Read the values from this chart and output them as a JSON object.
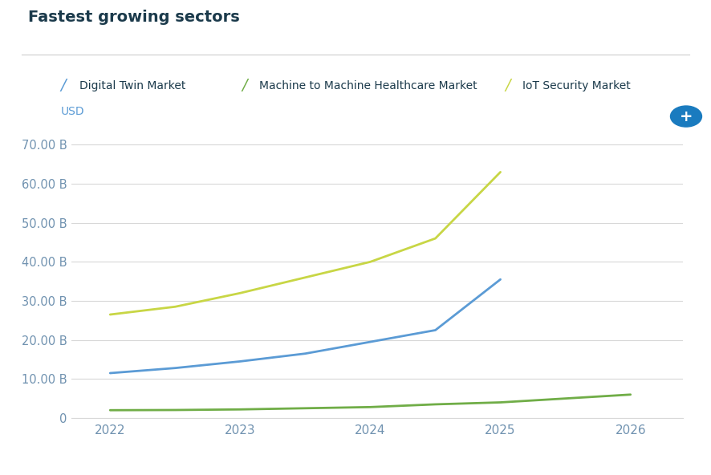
{
  "title": "Fastest growing sectors",
  "ylabel": "USD",
  "x_years": [
    2022,
    2022.5,
    2023,
    2023.5,
    2024,
    2024.5,
    2025
  ],
  "x_years_m2m": [
    2022,
    2022.5,
    2023,
    2023.5,
    2024,
    2024.5,
    2025,
    2025.5,
    2026
  ],
  "digital_twin": [
    11.5,
    12.8,
    14.5,
    16.5,
    19.5,
    22.5,
    35.5
  ],
  "m2m_healthcare": [
    2.0,
    2.05,
    2.2,
    2.5,
    2.8,
    3.5,
    4.0,
    5.0,
    6.0
  ],
  "iot_security": [
    26.5,
    28.5,
    32.0,
    36.0,
    40.0,
    46.0,
    63.0
  ],
  "x_xlim_min": 2021.7,
  "x_xlim_max": 2026.4,
  "digital_twin_color": "#5b9bd5",
  "m2m_healthcare_color": "#70ad47",
  "iot_security_color": "#c8d645",
  "title_color": "#1b3a4b",
  "tick_label_color": "#7092b0",
  "grid_color": "#d8d8d8",
  "background_color": "#ffffff",
  "ylim": [
    0,
    73
  ],
  "yticks": [
    0,
    10,
    20,
    30,
    40,
    50,
    60,
    70
  ],
  "ytick_labels": [
    "0",
    "10.00 B",
    "20.00 B",
    "30.00 B",
    "40.00 B",
    "50.00 B",
    "60.00 B",
    "70.00 B"
  ],
  "xticks": [
    2022,
    2023,
    2024,
    2025,
    2026
  ],
  "legend_labels": [
    "Digital Twin Market",
    "Machine to Machine Healthcare Market",
    "IoT Security Market"
  ],
  "plus_button_color": "#1a7bbf"
}
